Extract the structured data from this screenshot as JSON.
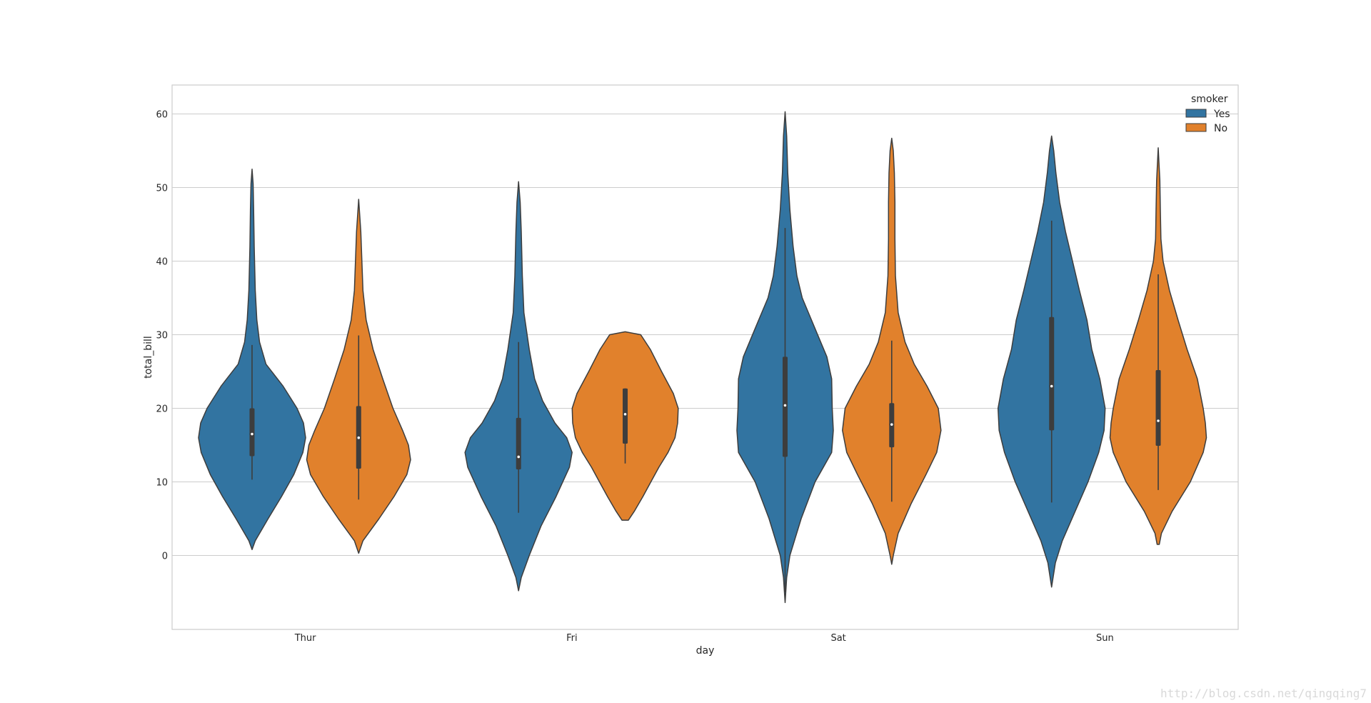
{
  "chart_data": {
    "type": "violin",
    "title": "",
    "xlabel": "day",
    "ylabel": "total_bill",
    "categories": [
      "Thur",
      "Fri",
      "Sat",
      "Sun"
    ],
    "ylim": [
      -10,
      64
    ],
    "yticks": [
      0,
      10,
      20,
      30,
      40,
      50,
      60
    ],
    "grid": true,
    "legend": {
      "title": "smoker",
      "position": "top-right"
    },
    "series": [
      {
        "name": "Yes",
        "color": "#3274a1",
        "violins": [
          {
            "category": "Thur",
            "min": 0.8,
            "max": 52.5,
            "q1": 13.5,
            "median": 16.5,
            "q3": 20,
            "whisker_low": 10.3,
            "whisker_high": 28.6,
            "profile": [
              [
                0.8,
                0
              ],
              [
                2,
                0.06
              ],
              [
                5,
                0.3
              ],
              [
                8,
                0.55
              ],
              [
                11,
                0.78
              ],
              [
                14,
                0.95
              ],
              [
                16,
                1.0
              ],
              [
                18,
                0.96
              ],
              [
                20,
                0.84
              ],
              [
                23,
                0.58
              ],
              [
                26,
                0.26
              ],
              [
                29,
                0.14
              ],
              [
                32,
                0.09
              ],
              [
                36,
                0.06
              ],
              [
                42,
                0.04
              ],
              [
                47,
                0.03
              ],
              [
                50.5,
                0.02
              ],
              [
                52.5,
                0
              ]
            ]
          },
          {
            "category": "Fri",
            "min": -4.8,
            "max": 50.8,
            "q1": 11.7,
            "median": 13.4,
            "q3": 18.7,
            "whisker_low": 5.8,
            "whisker_high": 29,
            "profile": [
              [
                -4.8,
                0
              ],
              [
                -3,
                0.05
              ],
              [
                0,
                0.2
              ],
              [
                4,
                0.42
              ],
              [
                8,
                0.7
              ],
              [
                12,
                0.95
              ],
              [
                14,
                1.0
              ],
              [
                16,
                0.9
              ],
              [
                18,
                0.68
              ],
              [
                21,
                0.45
              ],
              [
                24,
                0.3
              ],
              [
                28,
                0.2
              ],
              [
                33,
                0.1
              ],
              [
                38,
                0.07
              ],
              [
                44,
                0.05
              ],
              [
                48,
                0.03
              ],
              [
                50.8,
                0
              ]
            ]
          },
          {
            "category": "Sat",
            "min": -6.4,
            "max": 60.3,
            "q1": 13.4,
            "median": 20.4,
            "q3": 27,
            "whisker_low": -5,
            "whisker_high": 44.5,
            "profile": [
              [
                -6.4,
                0
              ],
              [
                -3,
                0.03
              ],
              [
                0,
                0.09
              ],
              [
                5,
                0.3
              ],
              [
                10,
                0.56
              ],
              [
                14,
                0.87
              ],
              [
                17,
                0.9
              ],
              [
                20,
                0.88
              ],
              [
                24,
                0.87
              ],
              [
                27,
                0.78
              ],
              [
                31,
                0.55
              ],
              [
                35,
                0.32
              ],
              [
                38,
                0.22
              ],
              [
                42,
                0.15
              ],
              [
                47,
                0.09
              ],
              [
                52,
                0.05
              ],
              [
                57,
                0.03
              ],
              [
                60.3,
                0
              ]
            ]
          },
          {
            "category": "Sun",
            "min": -4.3,
            "max": 57,
            "q1": 17,
            "median": 23,
            "q3": 32.4,
            "whisker_low": 7.2,
            "whisker_high": 45.5,
            "profile": [
              [
                -4.3,
                0
              ],
              [
                -1,
                0.07
              ],
              [
                2,
                0.2
              ],
              [
                6,
                0.44
              ],
              [
                10,
                0.68
              ],
              [
                14,
                0.88
              ],
              [
                17,
                0.98
              ],
              [
                20,
                1.0
              ],
              [
                24,
                0.9
              ],
              [
                28,
                0.75
              ],
              [
                32,
                0.66
              ],
              [
                36,
                0.52
              ],
              [
                40,
                0.39
              ],
              [
                44,
                0.26
              ],
              [
                48,
                0.15
              ],
              [
                52,
                0.08
              ],
              [
                55,
                0.04
              ],
              [
                57,
                0
              ]
            ]
          }
        ]
      },
      {
        "name": "No",
        "color": "#e1812c",
        "violins": [
          {
            "category": "Thur",
            "min": 0.3,
            "max": 48.4,
            "q1": 11.8,
            "median": 16,
            "q3": 20.3,
            "whisker_low": 7.6,
            "whisker_high": 29.9,
            "profile": [
              [
                0.3,
                0
              ],
              [
                2,
                0.08
              ],
              [
                5,
                0.38
              ],
              [
                8,
                0.66
              ],
              [
                11,
                0.9
              ],
              [
                13,
                0.97
              ],
              [
                15,
                0.93
              ],
              [
                17,
                0.82
              ],
              [
                20,
                0.64
              ],
              [
                24,
                0.45
              ],
              [
                28,
                0.27
              ],
              [
                32,
                0.14
              ],
              [
                36,
                0.08
              ],
              [
                40,
                0.06
              ],
              [
                44,
                0.04
              ],
              [
                48.4,
                0
              ]
            ]
          },
          {
            "category": "Fri",
            "min": 4.8,
            "max": 30.4,
            "q1": 15.2,
            "median": 19.2,
            "q3": 22.7,
            "whisker_low": 12.5,
            "whisker_high": 22.7,
            "profile": [
              [
                4.8,
                0.06
              ],
              [
                6,
                0.17
              ],
              [
                8,
                0.33
              ],
              [
                10,
                0.48
              ],
              [
                12,
                0.63
              ],
              [
                14,
                0.8
              ],
              [
                16,
                0.93
              ],
              [
                18,
                0.98
              ],
              [
                20,
                0.99
              ],
              [
                22,
                0.9
              ],
              [
                25,
                0.68
              ],
              [
                28,
                0.47
              ],
              [
                30,
                0.29
              ],
              [
                30.4,
                0
              ]
            ]
          },
          {
            "category": "Sat",
            "min": -1.2,
            "max": 56.7,
            "q1": 14.7,
            "median": 17.8,
            "q3": 20.7,
            "whisker_low": 7.3,
            "whisker_high": 29.2,
            "profile": [
              [
                -1.2,
                0
              ],
              [
                0,
                0.03
              ],
              [
                3,
                0.12
              ],
              [
                7,
                0.36
              ],
              [
                11,
                0.64
              ],
              [
                14,
                0.84
              ],
              [
                17,
                0.92
              ],
              [
                20,
                0.87
              ],
              [
                23,
                0.66
              ],
              [
                26,
                0.42
              ],
              [
                29,
                0.25
              ],
              [
                33,
                0.12
              ],
              [
                38,
                0.07
              ],
              [
                43,
                0.06
              ],
              [
                48,
                0.06
              ],
              [
                52,
                0.05
              ],
              [
                55,
                0.03
              ],
              [
                56.7,
                0
              ]
            ]
          },
          {
            "category": "Sun",
            "min": 1.5,
            "max": 55.4,
            "q1": 14.9,
            "median": 18.3,
            "q3": 25.2,
            "whisker_low": 8.9,
            "whisker_high": 38.2,
            "profile": [
              [
                1.5,
                0.02
              ],
              [
                3,
                0.06
              ],
              [
                6,
                0.26
              ],
              [
                10,
                0.6
              ],
              [
                14,
                0.84
              ],
              [
                16,
                0.9
              ],
              [
                18,
                0.88
              ],
              [
                20,
                0.84
              ],
              [
                24,
                0.73
              ],
              [
                28,
                0.54
              ],
              [
                32,
                0.37
              ],
              [
                36,
                0.21
              ],
              [
                40,
                0.09
              ],
              [
                43,
                0.05
              ],
              [
                47,
                0.04
              ],
              [
                51,
                0.03
              ],
              [
                55.4,
                0
              ]
            ]
          }
        ]
      }
    ]
  },
  "watermark": "http://blog.csdn.net/qingqing7"
}
